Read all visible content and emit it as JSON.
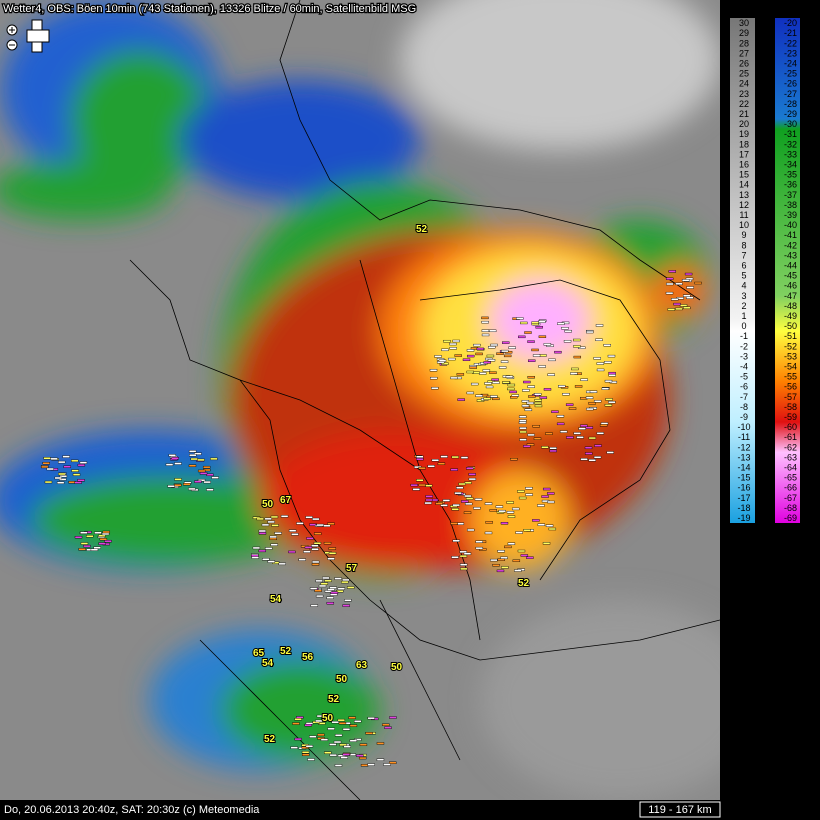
{
  "header": {
    "title": "Wetter4, OBS: Böen 10min (743 Stationen), 13326 Blitze / 60min, Satellitenbild MSG"
  },
  "footer": {
    "timestamp": "Do, 20.06.2013 20:40z, SAT: 20:30z (c) Meteomedia",
    "scale": "119 - 167 km"
  },
  "legend": {
    "left": [
      "30",
      "29",
      "28",
      "27",
      "26",
      "25",
      "24",
      "23",
      "22",
      "21",
      "20",
      "19",
      "18",
      "17",
      "16",
      "15",
      "14",
      "13",
      "12",
      "11",
      "10",
      "9",
      "8",
      "7",
      "6",
      "5",
      "4",
      "3",
      "2",
      "1",
      "0",
      "-1",
      "-2",
      "-3",
      "-4",
      "-5",
      "-6",
      "-7",
      "-8",
      "-9",
      "-10",
      "-11",
      "-12",
      "-13",
      "-14",
      "-15",
      "-16",
      "-17",
      "-18",
      "-19"
    ],
    "right": [
      "-20",
      "-21",
      "-22",
      "-23",
      "-24",
      "-25",
      "-26",
      "-27",
      "-28",
      "-29",
      "-30",
      "-31",
      "-32",
      "-33",
      "-34",
      "-35",
      "-36",
      "-37",
      "-38",
      "-39",
      "-40",
      "-41",
      "-42",
      "-43",
      "-44",
      "-45",
      "-46",
      "-47",
      "-48",
      "-49",
      "-50",
      "-51",
      "-52",
      "-53",
      "-54",
      "-55",
      "-56",
      "-57",
      "-58",
      "-59",
      "-60",
      "-61",
      "-62",
      "-63",
      "-64",
      "-65",
      "-66",
      "-67",
      "-68",
      "-69"
    ]
  },
  "gusts": [
    "52",
    "50",
    "67",
    "54",
    "57",
    "52",
    "65",
    "52",
    "56",
    "63",
    "50",
    "54",
    "50",
    "52",
    "50",
    "52"
  ]
}
